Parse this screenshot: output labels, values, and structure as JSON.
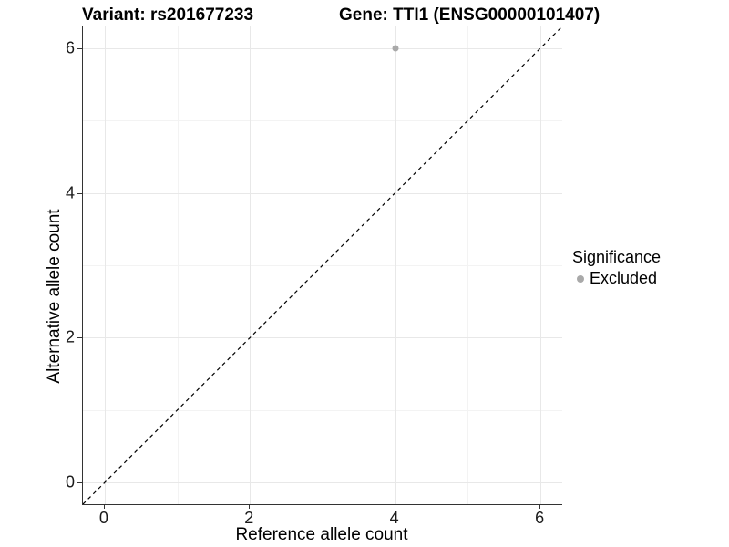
{
  "titles": {
    "variant": "Variant: rs201677233",
    "gene": "Gene: TTI1 (ENSG00000101407)"
  },
  "legend": {
    "title": "Significance",
    "items": [
      {
        "label": "Excluded",
        "color": "#a9a9a9"
      }
    ]
  },
  "colors": {
    "point": "#a9a9a9",
    "major_grid": "#e8e8e8",
    "minor_grid": "#f3f3f3",
    "axis_line": "#333333",
    "reference_line": "#000000",
    "title_text": "#000000"
  },
  "chart_data": {
    "type": "scatter",
    "title": "Variant: rs201677233 | Gene: TTI1 (ENSG00000101407)",
    "xlabel": "Reference allele count",
    "ylabel": "Alternative allele count",
    "xlim": [
      -0.3,
      6.3
    ],
    "ylim": [
      -0.3,
      6.3
    ],
    "x_ticks": [
      0,
      2,
      4,
      6
    ],
    "y_ticks": [
      0,
      2,
      4,
      6
    ],
    "x_minor_gridlines": [
      1,
      3,
      5
    ],
    "y_minor_gridlines": [
      1,
      3,
      5
    ],
    "grid": true,
    "legend_position": "right",
    "series": [
      {
        "name": "Excluded",
        "color": "#a9a9a9",
        "points": [
          {
            "x": 4,
            "y": 6
          }
        ]
      }
    ],
    "reference_line": {
      "kind": "abline",
      "slope": 1,
      "intercept": 0,
      "style": "dashed",
      "color": "#000000"
    }
  }
}
